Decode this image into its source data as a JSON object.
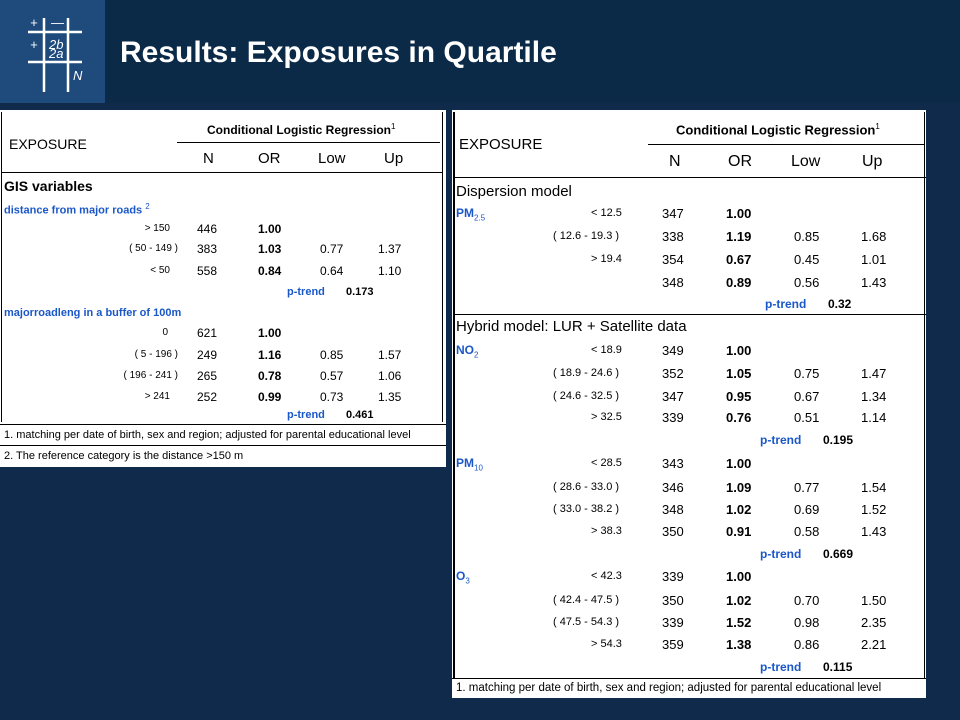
{
  "title": "Results: Exposures in Quartile",
  "left_table": {
    "exposure_label": "EXPOSURE",
    "clr_label": "Conditional Logistic Regression",
    "clr_sup": "1",
    "cols": [
      "N",
      "OR",
      "Low",
      "Up"
    ],
    "section_title": "GIS variables",
    "var1_label": "distance from major roads",
    "var1_sup": "2",
    "var1_rows": [
      {
        "cat": ">   150",
        "N": "446",
        "OR": "1.00",
        "Low": "",
        "Up": ""
      },
      {
        "cat": "( 50   -  149 )",
        "N": "383",
        "OR": "1.03",
        "Low": "0.77",
        "Up": "1.37"
      },
      {
        "cat": "<    50",
        "N": "558",
        "OR": "0.84",
        "Low": "0.64",
        "Up": "1.10"
      }
    ],
    "var1_ptrend_label": "p-trend",
    "var1_ptrend": "0.173",
    "var2_label": "majorroadleng in a buffer of 100m",
    "var2_rows": [
      {
        "cat": "0",
        "N": "621",
        "OR": "1.00",
        "Low": "",
        "Up": ""
      },
      {
        "cat": "( 5     -  196 )",
        "N": "249",
        "OR": "1.16",
        "Low": "0.85",
        "Up": "1.57"
      },
      {
        "cat": "( 196   -  241 )",
        "N": "265",
        "OR": "0.78",
        "Low": "0.57",
        "Up": "1.06"
      },
      {
        "cat": ">    241",
        "N": "252",
        "OR": "0.99",
        "Low": "0.73",
        "Up": "1.35"
      }
    ],
    "var2_ptrend_label": "p-trend",
    "var2_ptrend": "0.461",
    "footnote1": "1. matching per date of birth, sex and region; adjusted for parental educational level",
    "footnote2": "2. The reference category is the distance >150 m"
  },
  "right_table": {
    "exposure_label": "EXPOSURE",
    "clr_label": "Conditional Logistic Regression",
    "clr_sup": "1",
    "cols": [
      "N",
      "OR",
      "Low",
      "Up"
    ],
    "section1_title": "Dispersion model",
    "pm25_label": "PM",
    "pm25_sub": "2.5",
    "pm25_rows": [
      {
        "cat": "<   12.5",
        "N": "347",
        "OR": "1.00",
        "Low": "",
        "Up": ""
      },
      {
        "cat": "( 12.6   -  19.3 )",
        "N": "338",
        "OR": "1.19",
        "Low": "0.85",
        "Up": "1.68"
      },
      {
        "cat": ">   19.4",
        "N": "354",
        "OR": "0.67",
        "Low": "0.45",
        "Up": "1.01"
      },
      {
        "cat": "",
        "N": "348",
        "OR": "0.89",
        "Low": "0.56",
        "Up": "1.43"
      }
    ],
    "pm25_ptrend_label": "p-trend",
    "pm25_ptrend": "0.32",
    "section2_title": "Hybrid model: LUR + Satellite data",
    "no2_label": "NO",
    "no2_sub": "2",
    "no2_rows": [
      {
        "cat": "<   18.9",
        "N": "349",
        "OR": "1.00",
        "Low": "",
        "Up": ""
      },
      {
        "cat": "( 18.9   -  24.6 )",
        "N": "352",
        "OR": "1.05",
        "Low": "0.75",
        "Up": "1.47"
      },
      {
        "cat": "( 24.6   -  32.5 )",
        "N": "347",
        "OR": "0.95",
        "Low": "0.67",
        "Up": "1.34"
      },
      {
        "cat": ">   32.5",
        "N": "339",
        "OR": "0.76",
        "Low": "0.51",
        "Up": "1.14"
      }
    ],
    "no2_ptrend_label": "p-trend",
    "no2_ptrend": "0.195",
    "pm10_label": "PM",
    "pm10_sub": "10",
    "pm10_rows": [
      {
        "cat": "<   28.5",
        "N": "343",
        "OR": "1.00",
        "Low": "",
        "Up": ""
      },
      {
        "cat": "( 28.6   -  33.0 )",
        "N": "346",
        "OR": "1.09",
        "Low": "0.77",
        "Up": "1.54"
      },
      {
        "cat": "( 33.0   -  38.2 )",
        "N": "348",
        "OR": "1.02",
        "Low": "0.69",
        "Up": "1.52"
      },
      {
        "cat": ">   38.3",
        "N": "350",
        "OR": "0.91",
        "Low": "0.58",
        "Up": "1.43"
      }
    ],
    "pm10_ptrend_label": "p-trend",
    "pm10_ptrend": "0.669",
    "o3_label": "O",
    "o3_sub": "3",
    "o3_rows": [
      {
        "cat": "<   42.3",
        "N": "339",
        "OR": "1.00",
        "Low": "",
        "Up": ""
      },
      {
        "cat": "( 42.4   -  47.5 )",
        "N": "350",
        "OR": "1.02",
        "Low": "0.70",
        "Up": "1.50"
      },
      {
        "cat": "( 47.5   -  54.3 )",
        "N": "339",
        "OR": "1.52",
        "Low": "0.98",
        "Up": "2.35"
      },
      {
        "cat": ">   54.3",
        "N": "359",
        "OR": "1.38",
        "Low": "0.86",
        "Up": "2.21"
      }
    ],
    "o3_ptrend_label": "p-trend",
    "o3_ptrend": "0.115",
    "footnote1": "1. matching per date of birth, sex and region; adjusted for parental educational level"
  }
}
